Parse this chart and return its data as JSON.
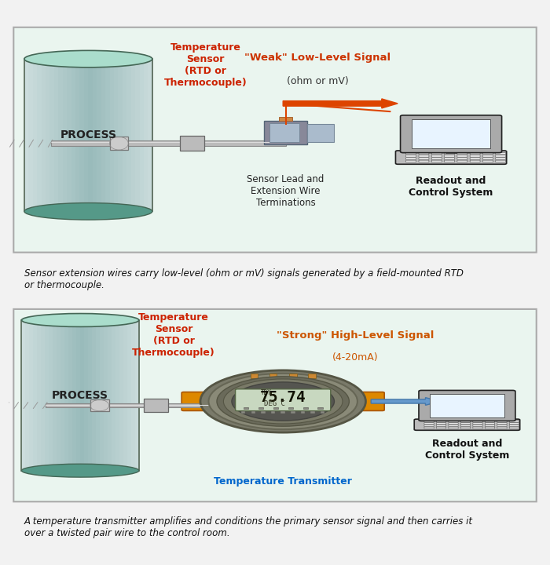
{
  "bg_color": "#f2f2f2",
  "panel_bg": "#eaf5ef",
  "panel_border": "#aaaaaa",
  "top_caption": "Sensor extension wires carry low-level (ohm or mV) signals generated by a field-mounted RTD\nor thermocouple.",
  "bottom_caption": "A temperature transmitter amplifies and conditions the primary sensor signal and then carries it\nover a twisted pair wire to the control room.",
  "process_label": "PROCESS",
  "temp_sensor_label_top": "Temperature\nSensor\n(RTD or\nThermocouple)",
  "temp_sensor_label_bot": "Temperature\nSensor\n(RTD or\nThermocouple)",
  "temp_sensor_color": "#cc2200",
  "top_signal_label_1": "\"Weak\" Low-Level Signal",
  "top_signal_label_2": "(ohm or mV)",
  "top_signal_color": "#cc3300",
  "bottom_signal_label_1": "\"Strong\" High-Level Signal",
  "bottom_signal_label_2": "(4-20mA)",
  "bottom_signal_color": "#cc5500",
  "sensor_lead_label": "Sensor Lead and\nExtension Wire\nTerminations",
  "readout_label": "Readout and\nControl System",
  "transmitter_label": "Temperature Transmitter",
  "transmitter_label_color": "#0066cc",
  "cyl_top": "#aaddcc",
  "cyl_side_light": "#99ccbb",
  "cyl_side_dark": "#77aaaa",
  "cyl_edge": "#559988",
  "arrow_top_color": "#dd4400",
  "arrow_bot_color": "#6699cc",
  "display_reading": "75.74",
  "display_unit": "DEG C",
  "laptop_screen_bg": "#e8f4ff",
  "laptop_body": "#cccccc",
  "laptop_border": "#333333"
}
